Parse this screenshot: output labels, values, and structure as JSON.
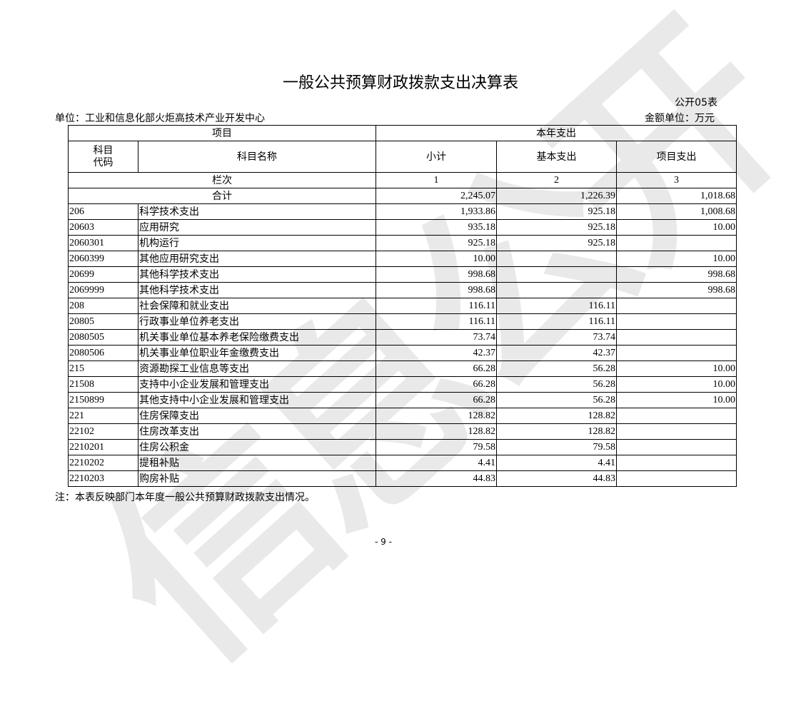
{
  "watermark": "信息公开",
  "title": "一般公共预算财政拨款支出决算表",
  "form_no": "公开05表",
  "unit": "单位：工业和信息化部火炬高技术产业开发中心",
  "money_unit": "金额单位：万元",
  "header": {
    "item": "项目",
    "current_year": "本年支出",
    "code": "科目\n代码",
    "name": "科目名称",
    "subtotal": "小计",
    "basic": "基本支出",
    "project": "项目支出",
    "column_no": "栏次",
    "col1": "1",
    "col2": "2",
    "col3": "3",
    "total_label": "合计"
  },
  "total": {
    "subtotal": "2,245.07",
    "basic": "1,226.39",
    "project": "1,018.68"
  },
  "rows": [
    {
      "code": "206",
      "name": "科学技术支出",
      "subtotal": "1,933.86",
      "basic": "925.18",
      "project": "1,008.68"
    },
    {
      "code": "20603",
      "name": "应用研究",
      "subtotal": "935.18",
      "basic": "925.18",
      "project": "10.00"
    },
    {
      "code": "2060301",
      "name": "机构运行",
      "subtotal": "925.18",
      "basic": "925.18",
      "project": ""
    },
    {
      "code": "2060399",
      "name": "其他应用研究支出",
      "subtotal": "10.00",
      "basic": "",
      "project": "10.00"
    },
    {
      "code": "20699",
      "name": "其他科学技术支出",
      "subtotal": "998.68",
      "basic": "",
      "project": "998.68"
    },
    {
      "code": "2069999",
      "name": "其他科学技术支出",
      "subtotal": "998.68",
      "basic": "",
      "project": "998.68"
    },
    {
      "code": "208",
      "name": "社会保障和就业支出",
      "subtotal": "116.11",
      "basic": "116.11",
      "project": ""
    },
    {
      "code": "20805",
      "name": "行政事业单位养老支出",
      "subtotal": "116.11",
      "basic": "116.11",
      "project": ""
    },
    {
      "code": "2080505",
      "name": "机关事业单位基本养老保险缴费支出",
      "subtotal": "73.74",
      "basic": "73.74",
      "project": ""
    },
    {
      "code": "2080506",
      "name": "机关事业单位职业年金缴费支出",
      "subtotal": "42.37",
      "basic": "42.37",
      "project": ""
    },
    {
      "code": "215",
      "name": "资源勘探工业信息等支出",
      "subtotal": "66.28",
      "basic": "56.28",
      "project": "10.00"
    },
    {
      "code": "21508",
      "name": "支持中小企业发展和管理支出",
      "subtotal": "66.28",
      "basic": "56.28",
      "project": "10.00"
    },
    {
      "code": "2150899",
      "name": "其他支持中小企业发展和管理支出",
      "subtotal": "66.28",
      "basic": "56.28",
      "project": "10.00"
    },
    {
      "code": "221",
      "name": "住房保障支出",
      "subtotal": "128.82",
      "basic": "128.82",
      "project": ""
    },
    {
      "code": "22102",
      "name": "住房改革支出",
      "subtotal": "128.82",
      "basic": "128.82",
      "project": ""
    },
    {
      "code": "2210201",
      "name": "住房公积金",
      "subtotal": "79.58",
      "basic": "79.58",
      "project": ""
    },
    {
      "code": "2210202",
      "name": "提租补贴",
      "subtotal": "4.41",
      "basic": "4.41",
      "project": ""
    },
    {
      "code": "2210203",
      "name": "购房补贴",
      "subtotal": "44.83",
      "basic": "44.83",
      "project": ""
    }
  ],
  "note": "注：本表反映部门本年度一般公共预算财政拨款支出情况。",
  "page_number": "- 9 -"
}
